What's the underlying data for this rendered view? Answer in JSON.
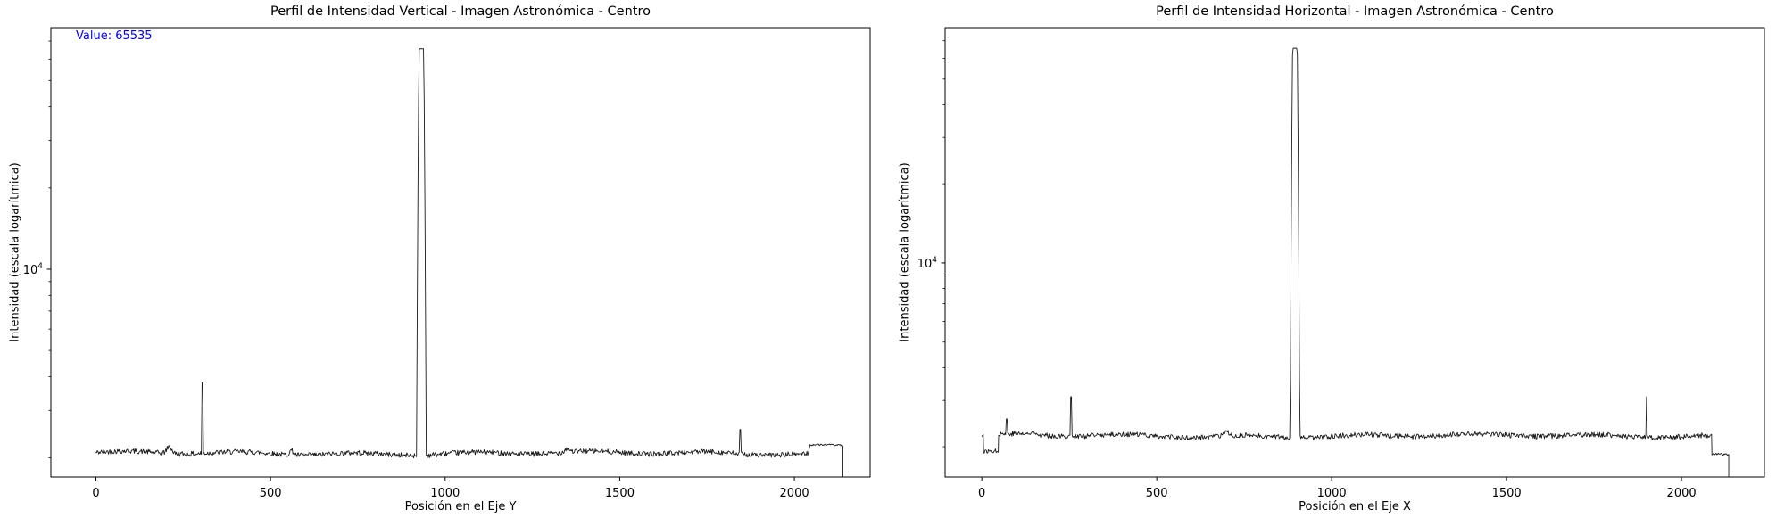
{
  "page": {
    "background_color": "#ffffff",
    "text_color": "#000000"
  },
  "chart_data": [
    {
      "id": "vertical-profile",
      "type": "line",
      "title": "Perfil de Intensidad Vertical - Imagen Astronómica - Centro",
      "xlabel": "Posición en el Eje Y",
      "ylabel": "Intensidad (escala logarítmica)",
      "annotation": {
        "text": "Value: 65535",
        "color": "#0000ff"
      },
      "line_color": "#1a1a1a",
      "x_axis": {
        "ticks": [
          0,
          500,
          1000,
          1500,
          2000
        ]
      },
      "y_axis": {
        "scale": "log",
        "major_tick": {
          "value": 10000,
          "base": "10",
          "exponent": "4"
        }
      },
      "xlim": [
        -129,
        2217
      ],
      "ylim": [
        1700,
        78500
      ],
      "grid": false,
      "legend": false,
      "curve": {
        "seed": 42,
        "segments": [
          {
            "x0": 0,
            "x1": 2040,
            "level": 2080,
            "noise": 0.022
          },
          {
            "x0": 2045,
            "x1": 2139,
            "level": 2230,
            "noise": 0.007
          }
        ],
        "bumps": [
          {
            "x": 210,
            "f": 1.06,
            "w": 10
          },
          {
            "x": 560,
            "f": 1.04,
            "w": 8
          },
          {
            "x": 1350,
            "f": 1.03,
            "w": 10
          }
        ],
        "spikes": [
          {
            "x": 305,
            "v": 3800
          },
          {
            "x": 1845,
            "v": 2550
          },
          {
            "x": 2042,
            "v": 2400
          }
        ],
        "peak": {
          "center": 932,
          "v": 65535,
          "sigma": 6.5,
          "scale": 3
        },
        "end_drop": 2139
      }
    },
    {
      "id": "horizontal-profile",
      "type": "line",
      "title": "Perfil de Intensidad Horizontal - Imagen Astronómica - Centro",
      "xlabel": "Posición en el Eje X",
      "ylabel": "Intensidad (escala logarítmica)",
      "annotation": null,
      "line_color": "#1a1a1a",
      "x_axis": {
        "ticks": [
          0,
          500,
          1000,
          1500,
          2000
        ]
      },
      "y_axis": {
        "scale": "log",
        "major_tick": {
          "value": 10000,
          "base": "10",
          "exponent": "4"
        }
      },
      "xlim": [
        -105,
        2237
      ],
      "ylim": [
        1535,
        78500
      ],
      "grid": false,
      "legend": false,
      "curve": {
        "seed": 77,
        "segments": [
          {
            "x0": 0,
            "x1": 4,
            "level": 2200,
            "noise": 0.015
          },
          {
            "x0": 5,
            "x1": 47,
            "level": 1900,
            "noise": 0.018
          },
          {
            "x0": 48,
            "x1": 2086,
            "level": 2200,
            "noise": 0.022
          },
          {
            "x0": 2087,
            "x1": 2135,
            "level": 1870,
            "noise": 0.009
          }
        ],
        "bumps": [
          {
            "x": 150,
            "f": 1.03,
            "w": 8
          },
          {
            "x": 700,
            "f": 1.03,
            "w": 10
          }
        ],
        "spikes": [
          {
            "x": 71,
            "v": 2550
          },
          {
            "x": 255,
            "v": 3100
          },
          {
            "x": 1900,
            "v": 3100
          }
        ],
        "peak": {
          "center": 895,
          "v": 65535,
          "sigma": 6.5,
          "scale": 3
        },
        "end_drop": 2135
      }
    }
  ]
}
